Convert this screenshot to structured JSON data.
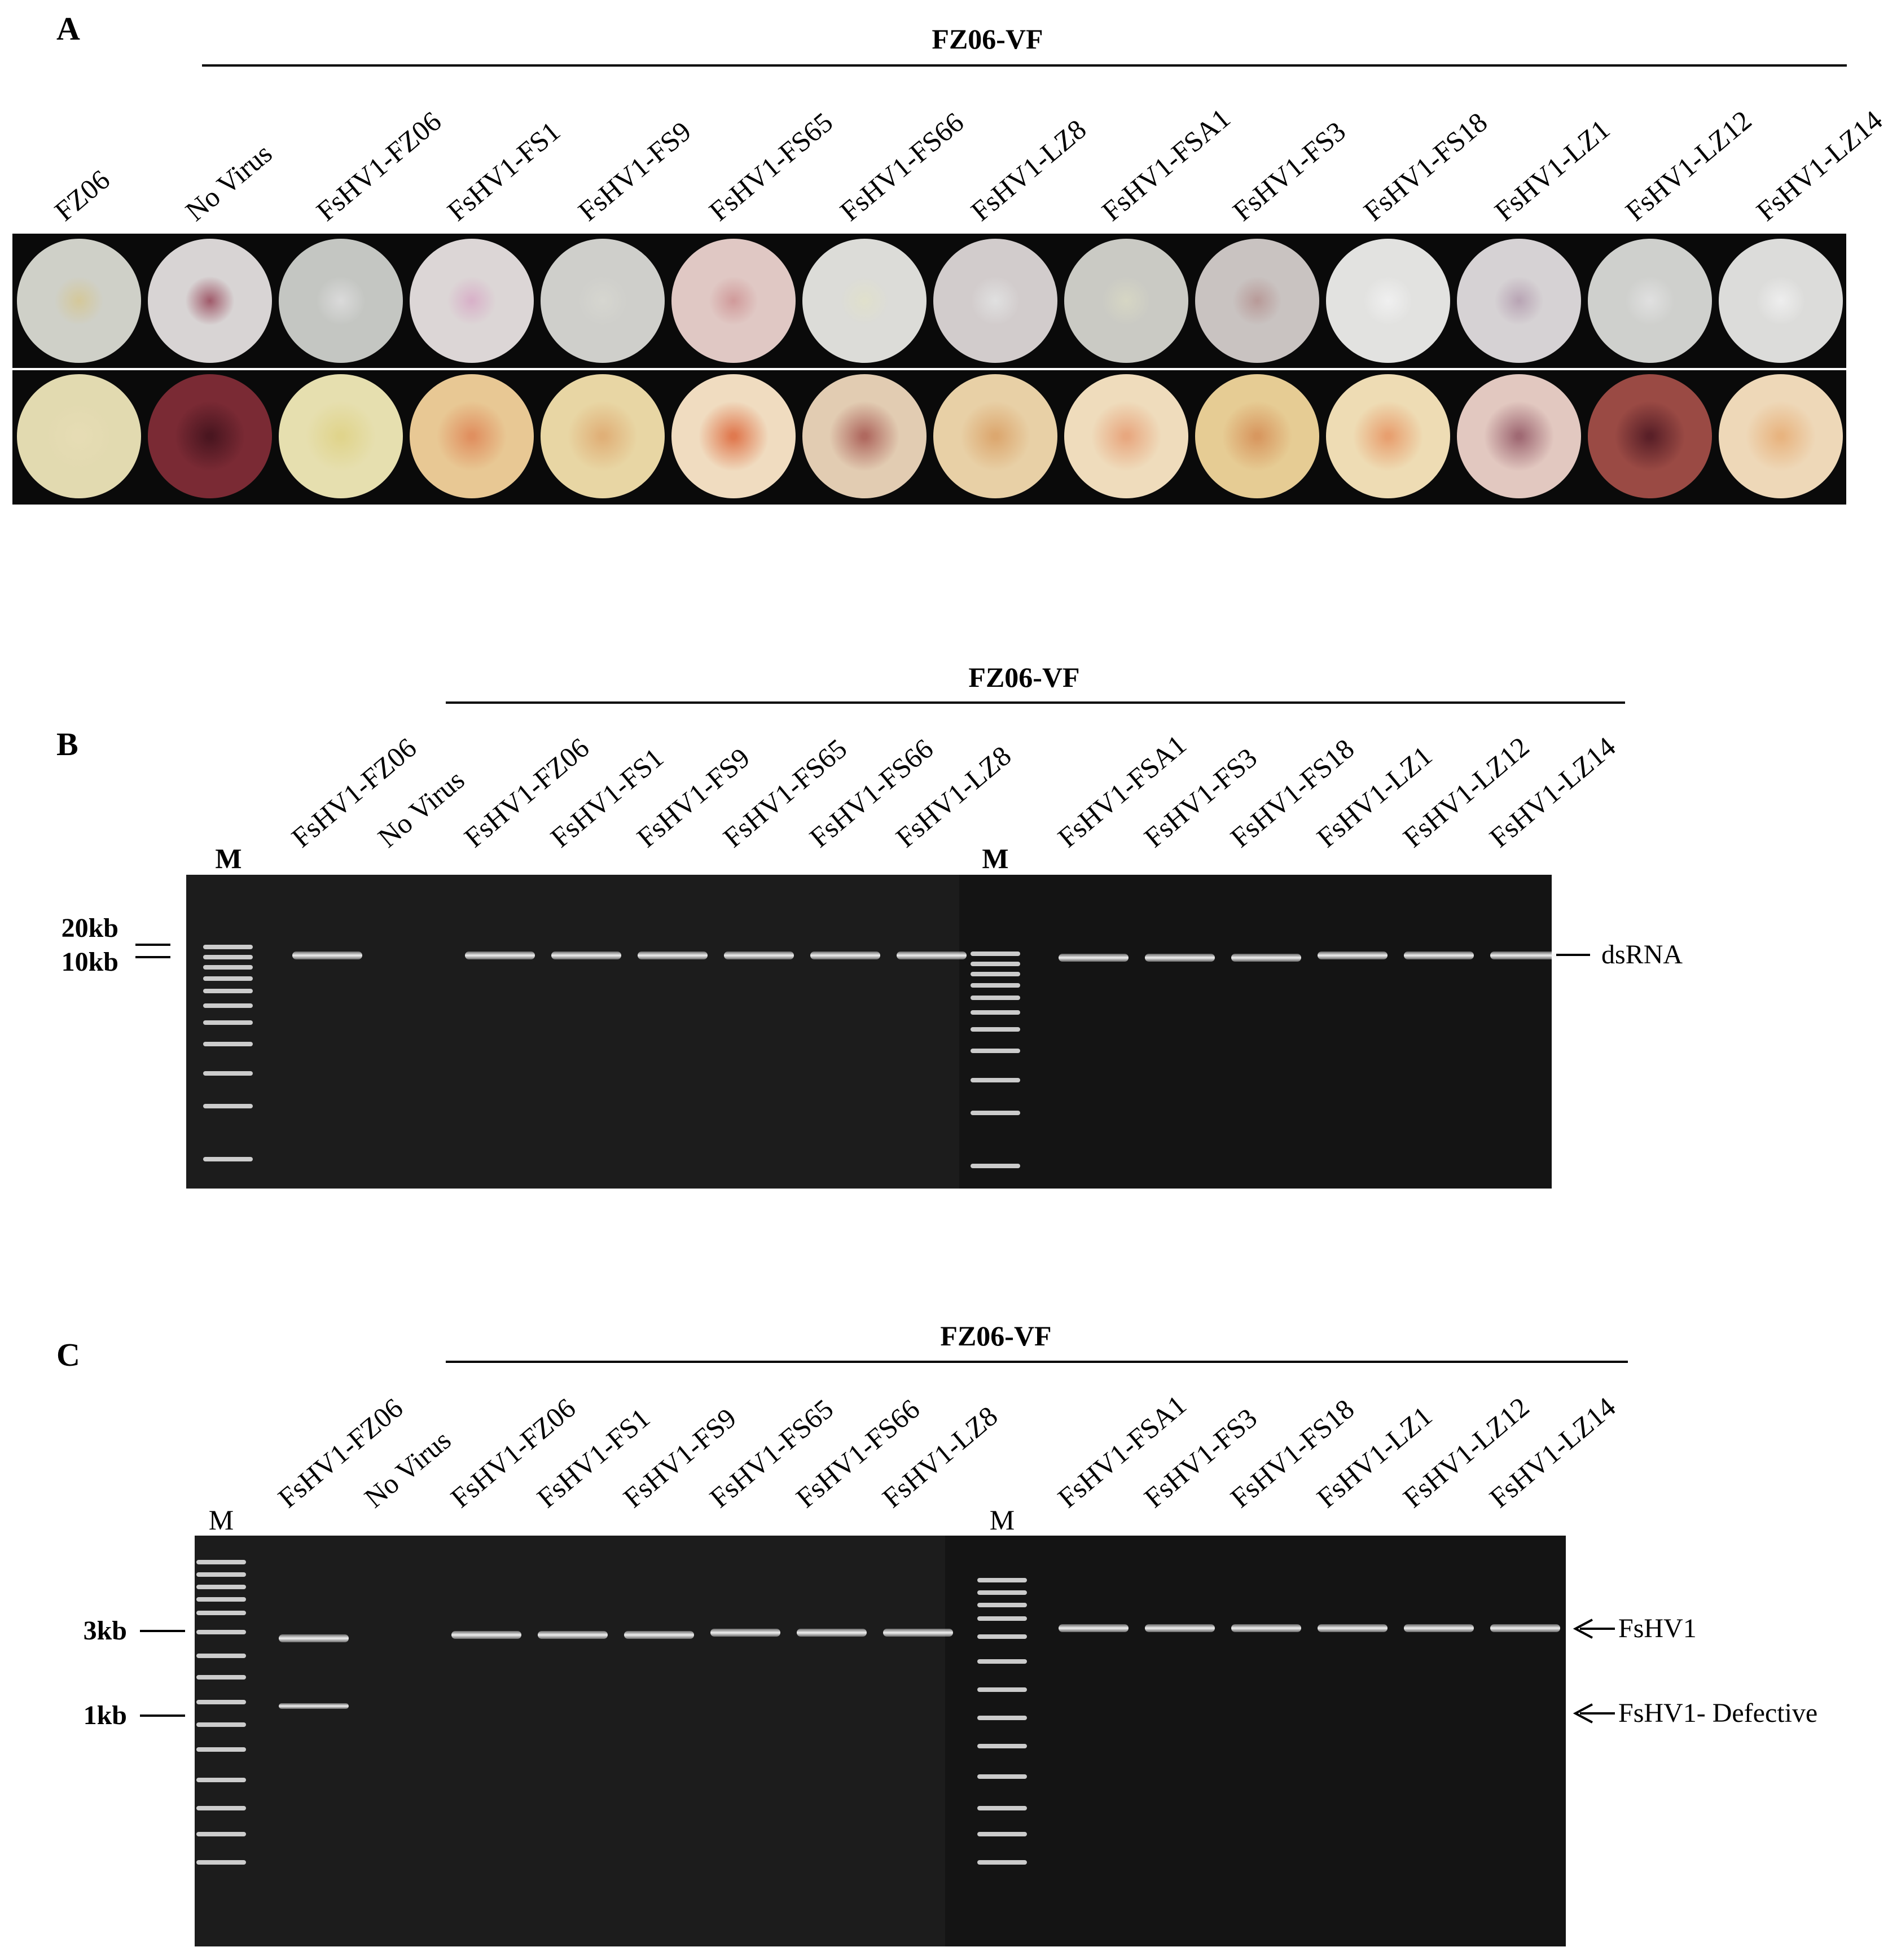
{
  "panel_a": {
    "letter": "A",
    "group_label": "FZ06-VF",
    "lanes": [
      "FZ06",
      "No Virus",
      "FsHV1-FZ06",
      "FsHV1-FS1",
      "FsHV1-FS9",
      "FsHV1-FS65",
      "FsHV1-FS66",
      "FsHV1-LZ8",
      "FsHV1-FSA1",
      "FsHV1-FS3",
      "FsHV1-FS18",
      "FsHV1-LZ1",
      "FsHV1-LZ12",
      "FsHV1-LZ14"
    ],
    "top_colors": [
      "#cfd0c8",
      "#d8d4d4",
      "#c4c6c2",
      "#dcd6d6",
      "#cfcfcb",
      "#e0c8c4",
      "#dcdcd8",
      "#d2cccc",
      "#cacac4",
      "#c9c3c1",
      "#e2e2e0",
      "#d6d2d4",
      "#cfd0cd",
      "#dcdcda"
    ],
    "top_centers": [
      "#d4c89a",
      "#a05a6a",
      "#dadada",
      "#d8b0c8",
      "#d6d6d0",
      "#d09a9a",
      "#e0e0cc",
      "#e0e0e0",
      "#d6d6c4",
      "#b89a98",
      "#f0f0f0",
      "#b8a4b4",
      "#e0e0e0",
      "#eeeeee"
    ],
    "bottom_colors": [
      "#e2dab0",
      "#7a2a34",
      "#e6dfaf",
      "#e8c894",
      "#e8d6a4",
      "#f0dcc0",
      "#e2ccb2",
      "#e8d0a6",
      "#efdcbc",
      "#e6cc94",
      "#eedcb4",
      "#e2c8c0",
      "#9a4a44",
      "#eed8b8"
    ],
    "bottom_centers": [
      "#e6dcb4",
      "#4a1620",
      "#e0d48c",
      "#e09060",
      "#e0b078",
      "#e07a50",
      "#b06a60",
      "#dca870",
      "#e8a880",
      "#d89860",
      "#e8a070",
      "#a06a74",
      "#5a2028",
      "#e8b480"
    ]
  },
  "panel_b": {
    "letter": "B",
    "group_label": "FZ06-VF",
    "lanes_left": [
      "FsHV1-FZ06",
      "No Virus",
      "FsHV1-FZ06",
      "FsHV1-FS1",
      "FsHV1-FS9",
      "FsHV1-FS65",
      "FsHV1-FS66",
      "FsHV1-LZ8"
    ],
    "lanes_right": [
      "FsHV1-FSA1",
      "FsHV1-FS3",
      "FsHV1-FS18",
      "FsHV1-LZ1",
      "FsHV1-LZ12",
      "FsHV1-LZ14"
    ],
    "marker_label": "M",
    "size_labels": [
      "20kb",
      "10kb"
    ],
    "band_label": "dsRNA"
  },
  "panel_c": {
    "letter": "C",
    "group_label": "FZ06-VF",
    "lanes_left": [
      "FsHV1-FZ06",
      "No Virus",
      "FsHV1-FZ06",
      "FsHV1-FS1",
      "FsHV1-FS9",
      "FsHV1-FS65",
      "FsHV1-FS66",
      "FsHV1-LZ8"
    ],
    "lanes_right": [
      "FsHV1-FSA1",
      "FsHV1-FS3",
      "FsHV1-FS18",
      "FsHV1-LZ1",
      "FsHV1-LZ12",
      "FsHV1-LZ14"
    ],
    "marker_label": "M",
    "size_labels": [
      "3kb",
      "1kb"
    ],
    "band_labels": [
      "FsHV1",
      "FsHV1- Defective"
    ]
  }
}
